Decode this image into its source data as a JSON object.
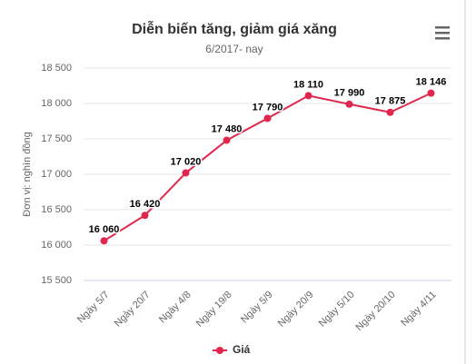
{
  "chart_data": {
    "type": "line",
    "title": "Diễn biến tăng, giảm giá xăng",
    "subtitle": "6/2017- nay",
    "y_axis_label": "Đơn vị: nghìn đồng",
    "categories": [
      "Ngày 5/7",
      "Ngày 20/7",
      "Ngày 4/8",
      "Ngày 19/8",
      "Ngày 5/9",
      "Ngày 20/9",
      "Ngày 5/10",
      "Ngày 20/10",
      "Ngày 4/11"
    ],
    "series": [
      {
        "name": "Giá",
        "color": "#e0264c",
        "values": [
          16060,
          16420,
          17020,
          17480,
          17790,
          18110,
          17990,
          17875,
          18146
        ],
        "value_labels": [
          "16 060",
          "16 420",
          "17 020",
          "17 480",
          "17 790",
          "18 110",
          "17 990",
          "17 875",
          "18 146"
        ]
      }
    ],
    "ylim": [
      15500,
      18500
    ],
    "yticks": [
      {
        "value": 15500,
        "label": "15 500"
      },
      {
        "value": 16000,
        "label": "16 000"
      },
      {
        "value": 16500,
        "label": "16 500"
      },
      {
        "value": 17000,
        "label": "17 000"
      },
      {
        "value": 17500,
        "label": "17 500"
      },
      {
        "value": 18000,
        "label": "18 000"
      },
      {
        "value": 18500,
        "label": "18 500"
      }
    ],
    "grid": true
  }
}
